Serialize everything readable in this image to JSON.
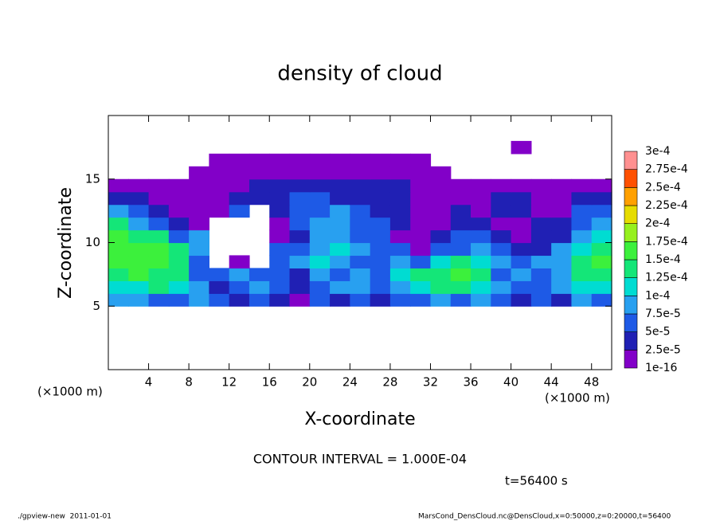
{
  "chart_data": {
    "type": "heatmap",
    "title": "density of cloud",
    "x_label": "X-coordinate",
    "y_label": "Z-coordinate",
    "x_unit": "(×1000 m)",
    "y_unit": "(×1000 m)",
    "annotation": "CONTOUR INTERVAL = 1.000E-04",
    "time_label": "t=56400 s",
    "footer_left": "./gpview-new  2011-01-01",
    "footer_right": "MarsCond_DensCloud.nc@DensCloud,x=0:50000,z=0:20000,t=56400",
    "xlim": [
      0,
      50
    ],
    "ylim": [
      0,
      20
    ],
    "xticks": [
      4,
      8,
      12,
      16,
      20,
      24,
      28,
      32,
      36,
      40,
      44,
      48
    ],
    "yticks": [
      5,
      10,
      15
    ],
    "xbins": [
      0,
      2,
      4,
      6,
      8,
      10,
      12,
      14,
      16,
      18,
      20,
      22,
      24,
      26,
      28,
      30,
      32,
      34,
      36,
      38,
      40,
      42,
      44,
      46,
      48,
      50
    ],
    "ybins": [
      0,
      1,
      2,
      3,
      4,
      5,
      6,
      7,
      8,
      9,
      10,
      11,
      12,
      13,
      14,
      15,
      16,
      17,
      18,
      19,
      20
    ],
    "levels": [
      {
        "value": 1e-16,
        "label": "1e-16"
      },
      {
        "value": 2.5e-05,
        "label": "2.5e-5"
      },
      {
        "value": 5e-05,
        "label": "5e-5"
      },
      {
        "value": 7.5e-05,
        "label": "7.5e-5"
      },
      {
        "value": 0.0001,
        "label": "1e-4"
      },
      {
        "value": 0.000125,
        "label": "1.25e-4"
      },
      {
        "value": 0.00015,
        "label": "1.5e-4"
      },
      {
        "value": 0.000175,
        "label": "1.75e-4"
      },
      {
        "value": 0.0002,
        "label": "2e-4"
      },
      {
        "value": 0.000225,
        "label": "2.25e-4"
      },
      {
        "value": 0.00025,
        "label": "2.5e-4"
      },
      {
        "value": 0.000275,
        "label": "2.75e-4"
      },
      {
        "value": 0.0003,
        "label": "3e-4"
      }
    ],
    "colors": [
      "#8200c8",
      "#2020b4",
      "#1e5ae6",
      "#28a0f0",
      "#00dcd2",
      "#14e678",
      "#3cf03c",
      "#96f01e",
      "#e6dc00",
      "#ffa000",
      "#ff5000",
      "#ff9090"
    ],
    "values": [
      [
        null,
        null,
        null,
        null,
        null,
        null,
        null,
        null,
        null,
        null,
        null,
        null,
        null,
        null,
        null,
        null,
        null,
        null,
        null,
        null,
        null,
        null,
        null,
        null,
        null
      ],
      [
        null,
        null,
        null,
        null,
        null,
        null,
        null,
        null,
        null,
        null,
        null,
        null,
        null,
        null,
        null,
        null,
        null,
        null,
        null,
        null,
        null,
        null,
        null,
        null,
        null
      ],
      [
        null,
        null,
        null,
        null,
        null,
        null,
        null,
        null,
        null,
        null,
        null,
        null,
        null,
        null,
        null,
        null,
        null,
        null,
        null,
        null,
        null,
        null,
        null,
        null,
        null
      ],
      [
        null,
        null,
        null,
        null,
        null,
        null,
        null,
        null,
        null,
        null,
        null,
        null,
        null,
        null,
        null,
        null,
        null,
        null,
        null,
        null,
        null,
        null,
        null,
        null,
        null
      ],
      [
        null,
        null,
        null,
        null,
        null,
        null,
        null,
        null,
        null,
        null,
        null,
        null,
        null,
        null,
        null,
        null,
        null,
        null,
        null,
        null,
        null,
        null,
        null,
        null,
        null
      ],
      [
        8.5e-05,
        8.5e-05,
        6e-05,
        6e-05,
        8.5e-05,
        6e-05,
        3.5e-05,
        6e-05,
        3.5e-05,
        1e-05,
        6e-05,
        3.5e-05,
        6e-05,
        3.5e-05,
        6e-05,
        6e-05,
        8.5e-05,
        6e-05,
        8.5e-05,
        6e-05,
        3.5e-05,
        6e-05,
        3.5e-05,
        8.5e-05,
        6e-05
      ],
      [
        0.00011,
        0.00011,
        0.000135,
        0.00011,
        8.5e-05,
        3.5e-05,
        6e-05,
        8.5e-05,
        6e-05,
        3.5e-05,
        6e-05,
        8.5e-05,
        8.5e-05,
        6e-05,
        8.5e-05,
        0.00011,
        0.000135,
        0.000135,
        0.00011,
        8.5e-05,
        6e-05,
        6e-05,
        8.5e-05,
        0.00011,
        0.00011
      ],
      [
        0.000135,
        0.00016,
        0.000135,
        0.000135,
        6e-05,
        6e-05,
        8.5e-05,
        6e-05,
        6e-05,
        3.5e-05,
        8.5e-05,
        6e-05,
        8.5e-05,
        6e-05,
        0.00011,
        0.000135,
        0.000135,
        0.00016,
        0.000135,
        6e-05,
        8.5e-05,
        6e-05,
        8.5e-05,
        0.000135,
        0.000135
      ],
      [
        0.00016,
        0.00016,
        0.00016,
        0.000135,
        6e-05,
        null,
        1e-05,
        null,
        6e-05,
        8.5e-05,
        0.00011,
        8.5e-05,
        6e-05,
        6e-05,
        8.5e-05,
        6e-05,
        0.00011,
        0.000135,
        0.00011,
        8.5e-05,
        6e-05,
        8.5e-05,
        8.5e-05,
        0.000135,
        0.00016
      ],
      [
        0.00016,
        0.00016,
        0.00016,
        0.000135,
        8.5e-05,
        null,
        null,
        null,
        6e-05,
        6e-05,
        8.5e-05,
        0.00011,
        8.5e-05,
        6e-05,
        6e-05,
        1e-05,
        6e-05,
        6e-05,
        8.5e-05,
        6e-05,
        3.5e-05,
        3.5e-05,
        8.5e-05,
        0.00011,
        0.000135
      ],
      [
        0.00016,
        0.000135,
        0.000135,
        6e-05,
        8.5e-05,
        null,
        null,
        null,
        1e-05,
        3.5e-05,
        8.5e-05,
        8.5e-05,
        6e-05,
        6e-05,
        1e-05,
        1e-05,
        3.5e-05,
        6e-05,
        6e-05,
        3.5e-05,
        1e-05,
        3.5e-05,
        3.5e-05,
        8.5e-05,
        0.00011
      ],
      [
        0.000135,
        8.5e-05,
        6e-05,
        3.5e-05,
        1e-05,
        null,
        null,
        null,
        1e-05,
        6e-05,
        8.5e-05,
        8.5e-05,
        6e-05,
        6e-05,
        3.5e-05,
        1e-05,
        1e-05,
        3.5e-05,
        3.5e-05,
        1e-05,
        1e-05,
        3.5e-05,
        3.5e-05,
        6e-05,
        8.5e-05
      ],
      [
        8.5e-05,
        6e-05,
        3.5e-05,
        1e-05,
        1e-05,
        1e-05,
        6e-05,
        null,
        3.5e-05,
        6e-05,
        6e-05,
        8.5e-05,
        6e-05,
        3.5e-05,
        3.5e-05,
        1e-05,
        1e-05,
        3.5e-05,
        1e-05,
        3.5e-05,
        3.5e-05,
        1e-05,
        1e-05,
        6e-05,
        6e-05
      ],
      [
        3.5e-05,
        3.5e-05,
        1e-05,
        1e-05,
        1e-05,
        1e-05,
        3.5e-05,
        3.5e-05,
        3.5e-05,
        6e-05,
        6e-05,
        3.5e-05,
        3.5e-05,
        3.5e-05,
        3.5e-05,
        1e-05,
        1e-05,
        1e-05,
        1e-05,
        3.5e-05,
        3.5e-05,
        1e-05,
        1e-05,
        3.5e-05,
        3.5e-05
      ],
      [
        1e-05,
        1e-05,
        1e-05,
        1e-05,
        1e-05,
        1e-05,
        1e-05,
        3.5e-05,
        3.5e-05,
        3.5e-05,
        3.5e-05,
        3.5e-05,
        3.5e-05,
        3.5e-05,
        3.5e-05,
        1e-05,
        1e-05,
        1e-05,
        1e-05,
        1e-05,
        1e-05,
        1e-05,
        1e-05,
        1e-05,
        1e-05
      ],
      [
        null,
        null,
        null,
        null,
        1e-05,
        1e-05,
        1e-05,
        1e-05,
        1e-05,
        1e-05,
        1e-05,
        1e-05,
        1e-05,
        1e-05,
        1e-05,
        1e-05,
        1e-05,
        null,
        null,
        null,
        null,
        null,
        null,
        null,
        null
      ],
      [
        null,
        null,
        null,
        null,
        null,
        1e-05,
        1e-05,
        1e-05,
        1e-05,
        1e-05,
        1e-05,
        1e-05,
        1e-05,
        1e-05,
        1e-05,
        1e-05,
        null,
        null,
        null,
        null,
        null,
        null,
        null,
        null,
        null
      ],
      [
        null,
        null,
        null,
        null,
        null,
        null,
        null,
        null,
        null,
        null,
        null,
        null,
        null,
        null,
        null,
        null,
        null,
        null,
        null,
        null,
        1e-05,
        null,
        null,
        null,
        null
      ],
      [
        null,
        null,
        null,
        null,
        null,
        null,
        null,
        null,
        null,
        null,
        null,
        null,
        null,
        null,
        null,
        null,
        null,
        null,
        null,
        null,
        null,
        null,
        null,
        null,
        null
      ],
      [
        null,
        null,
        null,
        null,
        null,
        null,
        null,
        null,
        null,
        null,
        null,
        null,
        null,
        null,
        null,
        null,
        null,
        null,
        null,
        null,
        null,
        null,
        null,
        null,
        null
      ]
    ]
  }
}
